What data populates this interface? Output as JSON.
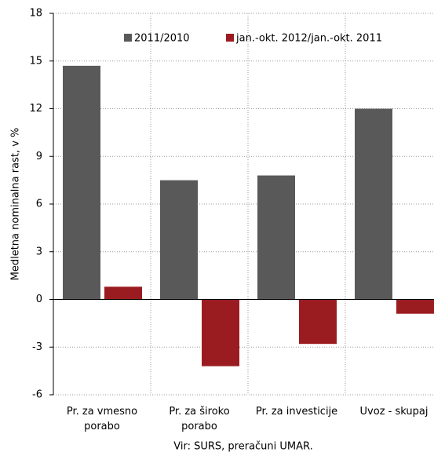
{
  "chart_data": {
    "type": "bar",
    "categories": [
      "Pr. za vmesno porabo",
      "Pr. za široko porabo",
      "Pr. za investicije",
      "Uvoz - skupaj"
    ],
    "series": [
      {
        "name": "2011/2010",
        "color": "#595959",
        "values": [
          14.7,
          7.5,
          7.8,
          12.0
        ]
      },
      {
        "name": "jan.-okt. 2012/jan.-okt. 2011",
        "color": "#9b1c20",
        "values": [
          0.8,
          -4.2,
          -2.8,
          -0.9
        ]
      }
    ],
    "ylabel": "Medletna nominalna rast, v %",
    "source": "Vir: SURS, preračuni UMAR.",
    "ylim": [
      -6,
      18
    ],
    "yticks": [
      -6,
      -3,
      0,
      3,
      6,
      9,
      12,
      15,
      18
    ],
    "grid": true,
    "legend": "top"
  }
}
